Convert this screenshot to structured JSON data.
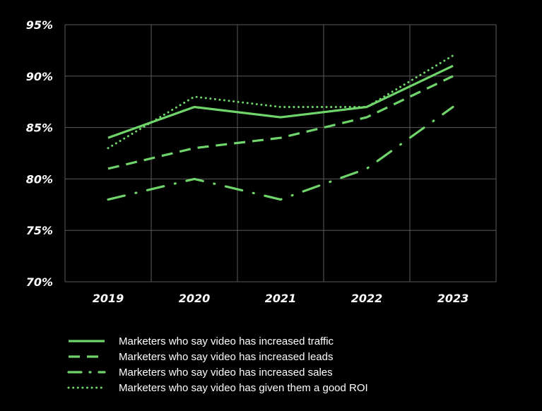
{
  "chart_data": {
    "type": "line",
    "title": "",
    "xlabel": "",
    "ylabel": "",
    "categories": [
      "2019",
      "2020",
      "2021",
      "2022",
      "2023"
    ],
    "ylim": [
      70,
      95
    ],
    "yticks": [
      70,
      75,
      80,
      85,
      90,
      95
    ],
    "ytick_labels": [
      "70%",
      "75%",
      "80%",
      "85%",
      "90%",
      "95%"
    ],
    "grid": true,
    "legend_position": "bottom",
    "series": [
      {
        "name": "Marketers who say video has increased traffic",
        "values": [
          84,
          87,
          86,
          87,
          91
        ],
        "style": "solid",
        "color": "#6fd46a"
      },
      {
        "name": "Marketers who say video has increased leads",
        "values": [
          81,
          83,
          84,
          86,
          90
        ],
        "style": "dashed",
        "color": "#6fd46a"
      },
      {
        "name": "Marketers who say video has increased sales",
        "values": [
          78,
          80,
          78,
          81,
          87
        ],
        "style": "dashdot",
        "color": "#6fd46a"
      },
      {
        "name": "Marketers who say video has given them a good ROI",
        "values": [
          83,
          88,
          87,
          87,
          92
        ],
        "style": "dotted",
        "color": "#6fd46a"
      }
    ]
  }
}
